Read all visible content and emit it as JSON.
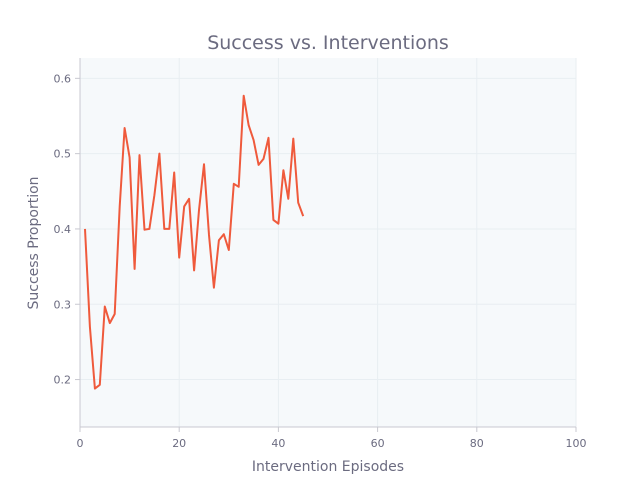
{
  "chart_data": {
    "type": "line",
    "title": "Success vs. Interventions",
    "xlabel": "Intervention Episodes",
    "ylabel": "Success Proportion",
    "xlim": [
      0,
      100
    ],
    "ylim": [
      0.137,
      0.627
    ],
    "xticks": [
      0,
      20,
      40,
      60,
      80,
      100
    ],
    "yticks": [
      0.2,
      0.3,
      0.4,
      0.5,
      0.6
    ],
    "ytick_labels": [
      "0.2",
      "0.3",
      "0.4",
      "0.5",
      "0.6"
    ],
    "grid": true,
    "series": [
      {
        "color": "#ef5a3c",
        "x": [
          1,
          2,
          3,
          4,
          5,
          6,
          7,
          8,
          9,
          10,
          11,
          12,
          13,
          14,
          15,
          16,
          17,
          18,
          19,
          20,
          21,
          22,
          23,
          24,
          25,
          26,
          27,
          28,
          29,
          30,
          31,
          32,
          33,
          34,
          35,
          36,
          37,
          38,
          39,
          40,
          41,
          42,
          43,
          44,
          45
        ],
        "y": [
          0.4,
          0.27,
          0.188,
          0.193,
          0.297,
          0.275,
          0.287,
          0.43,
          0.534,
          0.495,
          0.347,
          0.498,
          0.399,
          0.4,
          0.445,
          0.5,
          0.4,
          0.4,
          0.475,
          0.362,
          0.43,
          0.44,
          0.345,
          0.425,
          0.486,
          0.392,
          0.322,
          0.385,
          0.393,
          0.372,
          0.46,
          0.456,
          0.577,
          0.538,
          0.518,
          0.485,
          0.493,
          0.521,
          0.412,
          0.407,
          0.478,
          0.44,
          0.52,
          0.435,
          0.417
        ]
      }
    ]
  },
  "colors": {
    "plot_background": "#f6f9fb",
    "grid": "#e8eef2",
    "axis": "#c8c8d0",
    "text": "#6b6b80"
  }
}
